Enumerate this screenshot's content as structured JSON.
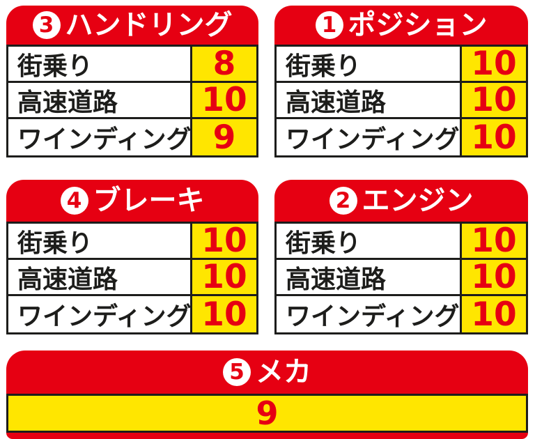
{
  "colors": {
    "red": "#e60012",
    "yellow": "#ffe600",
    "border_black": "#1d1d1b",
    "white": "#ffffff"
  },
  "panels": [
    {
      "number": "3",
      "title": "ハンドリング",
      "rows": [
        {
          "label": "街乗り",
          "score": "8"
        },
        {
          "label": "高速道路",
          "score": "10"
        },
        {
          "label": "ワインディング",
          "score": "9"
        }
      ]
    },
    {
      "number": "1",
      "title": "ポジション",
      "rows": [
        {
          "label": "街乗り",
          "score": "10"
        },
        {
          "label": "高速道路",
          "score": "10"
        },
        {
          "label": "ワインディング",
          "score": "10"
        }
      ]
    },
    {
      "number": "4",
      "title": "ブレーキ",
      "rows": [
        {
          "label": "街乗り",
          "score": "10"
        },
        {
          "label": "高速道路",
          "score": "10"
        },
        {
          "label": "ワインディング",
          "score": "10"
        }
      ]
    },
    {
      "number": "2",
      "title": "エンジン",
      "rows": [
        {
          "label": "街乗り",
          "score": "10"
        },
        {
          "label": "高速道路",
          "score": "10"
        },
        {
          "label": "ワインディング",
          "score": "10"
        }
      ]
    },
    {
      "number": "5",
      "title": "メカ",
      "score": "9"
    }
  ],
  "chart_data": {
    "type": "table",
    "categories": [
      "街乗り",
      "高速道路",
      "ワインディング"
    ],
    "series": [
      {
        "name": "1 ポジション",
        "values": [
          10,
          10,
          10
        ]
      },
      {
        "name": "2 エンジン",
        "values": [
          10,
          10,
          10
        ]
      },
      {
        "name": "3 ハンドリング",
        "values": [
          8,
          10,
          9
        ]
      },
      {
        "name": "4 ブレーキ",
        "values": [
          10,
          10,
          10
        ]
      },
      {
        "name": "5 メカ",
        "values": [
          9
        ]
      }
    ],
    "value_range": [
      0,
      10
    ],
    "layout": "2x2 grid of category tables plus full-width single-score table"
  }
}
